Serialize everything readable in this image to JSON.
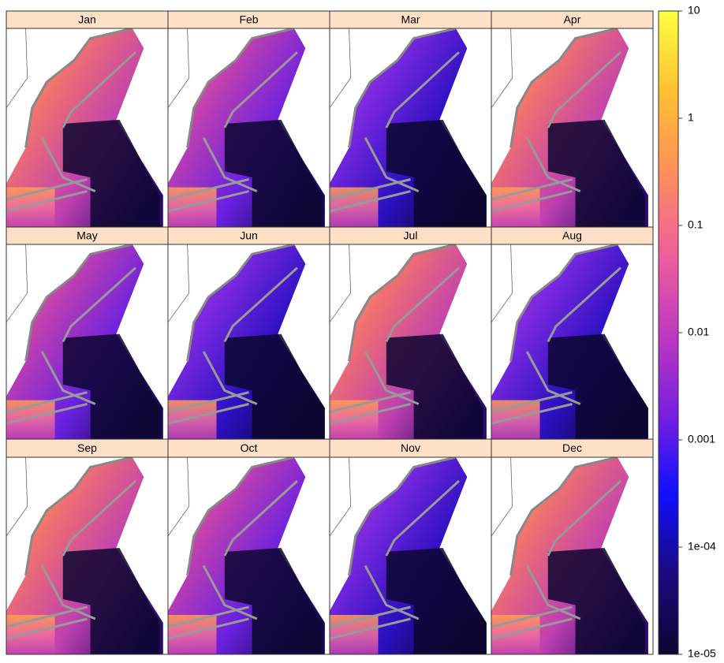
{
  "chart_data": {
    "type": "levelplot",
    "panels": [
      "Jan",
      "Feb",
      "Mar",
      "Apr",
      "May",
      "Jun",
      "Jul",
      "Aug",
      "Sep",
      "Oct",
      "Nov",
      "Dec"
    ],
    "zlim": [
      1e-05,
      10
    ],
    "log_scale": true,
    "zticks": [
      10,
      1,
      0.1,
      0.01,
      0.001,
      {
        "value": 0.0001,
        "label": "1e-04"
      },
      {
        "value": 1e-05,
        "label": "1e-05"
      }
    ],
    "colorscale": [
      "#0d0630",
      "#1a0a80",
      "#1010ff",
      "#7a1fe0",
      "#c03ac0",
      "#f0609a",
      "#ff8f5a",
      "#ffc030",
      "#ffff40"
    ]
  }
}
